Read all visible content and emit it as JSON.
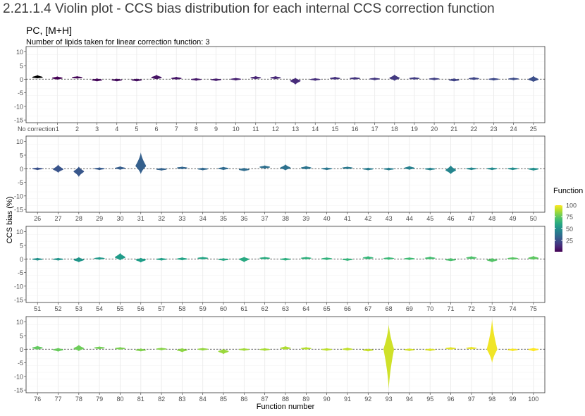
{
  "section_heading": "2.21.1.4 Violin plot - CCS bias distribution for each internal CCS correction function",
  "chart_data": {
    "type": "violin",
    "title": "PC, [M+H]",
    "subtitle": "Number of lipids taken for linear correction function: 3",
    "xlabel": "Function number",
    "ylabel": "CCS bias (%)",
    "ylim": [
      -16,
      12
    ],
    "yticks": [
      10,
      5,
      0,
      -5,
      -10,
      -15
    ],
    "reference_line_y": 0,
    "grid": true,
    "legend": {
      "title": "Function number",
      "position": "right",
      "ticks": [
        100,
        75,
        50,
        25
      ],
      "range": [
        1,
        100
      ],
      "colormap": "viridis"
    },
    "panels": [
      {
        "labels": [
          "No correction",
          "1",
          "2",
          "3",
          "4",
          "5",
          "6",
          "7",
          "8",
          "9",
          "10",
          "11",
          "12",
          "13",
          "14",
          "15",
          "16",
          "17",
          "18",
          "19",
          "20",
          "21",
          "22",
          "23",
          "24",
          "25"
        ],
        "median": [
          0.7,
          0.4,
          0.6,
          -0.3,
          -0.3,
          -0.3,
          0.6,
          0.3,
          -0.1,
          -0.2,
          0,
          0.5,
          0.5,
          -0.6,
          -0.1,
          0.3,
          0.3,
          0.1,
          0.4,
          0.3,
          0.1,
          -0.3,
          0.2,
          0,
          0.1,
          -0.1
        ],
        "min": [
          0.3,
          -0.2,
          0.2,
          -0.8,
          -0.8,
          -0.8,
          -0.1,
          -0.2,
          -0.6,
          -0.7,
          -0.5,
          0,
          0,
          -2,
          -0.6,
          -0.2,
          -0.2,
          -0.4,
          -0.6,
          -0.2,
          -0.4,
          -0.8,
          -0.3,
          -0.5,
          -0.4,
          -1
        ],
        "max": [
          1.5,
          1,
          1.1,
          0.3,
          0.2,
          0.2,
          1.6,
          0.9,
          0.4,
          0.3,
          0.5,
          1.1,
          1.1,
          0.5,
          0.4,
          0.9,
          0.8,
          0.6,
          1.7,
          0.8,
          0.6,
          0.3,
          0.8,
          0.5,
          0.6,
          1.2
        ]
      },
      {
        "labels": [
          "26",
          "27",
          "28",
          "29",
          "30",
          "31",
          "32",
          "33",
          "34",
          "35",
          "36",
          "37",
          "38",
          "39",
          "40",
          "41",
          "42",
          "43",
          "44",
          "45",
          "46",
          "47",
          "48",
          "49",
          "50"
        ],
        "median": [
          0,
          -0.2,
          -1,
          0,
          0.2,
          1,
          -0.2,
          0.3,
          -0.1,
          0.1,
          -0.3,
          0.6,
          0.3,
          0.3,
          0,
          0.3,
          -0.1,
          -0.1,
          0.2,
          -0.1,
          -0.5,
          0,
          0,
          0,
          -0.1
        ],
        "min": [
          -0.5,
          -1.5,
          -3,
          -0.5,
          -0.4,
          -2,
          -0.7,
          -0.2,
          -0.6,
          -0.5,
          -0.9,
          0,
          -0.6,
          -0.3,
          -0.5,
          -0.2,
          -0.6,
          -0.6,
          -0.4,
          -0.6,
          -2,
          -0.5,
          -0.5,
          -0.5,
          -0.7
        ],
        "max": [
          0.5,
          1.5,
          0.8,
          0.5,
          0.9,
          6,
          0.3,
          0.8,
          0.4,
          0.7,
          0.3,
          1.2,
          1.6,
          1,
          0.5,
          0.8,
          0.4,
          0.4,
          1,
          0.4,
          1.2,
          0.5,
          0.5,
          0.5,
          0.4
        ]
      },
      {
        "labels": [
          "51",
          "52",
          "53",
          "54",
          "55",
          "56",
          "57",
          "58",
          "59",
          "60",
          "61",
          "62",
          "63",
          "64",
          "65",
          "66",
          "67",
          "68",
          "69",
          "70",
          "71",
          "72",
          "73",
          "74",
          "75"
        ],
        "median": [
          -0.1,
          -0.1,
          -0.3,
          0.2,
          0.6,
          -0.3,
          -0.1,
          0,
          0.3,
          -0.2,
          -0.1,
          0.3,
          -0.1,
          0.3,
          0.1,
          -0.2,
          0.4,
          0.2,
          0.1,
          0.3,
          -0.3,
          0.4,
          -0.4,
          0.2,
          0.3
        ],
        "min": [
          -0.6,
          -0.6,
          -1.2,
          -0.3,
          -0.5,
          -1.3,
          -0.6,
          -0.5,
          -0.2,
          -0.7,
          -1.2,
          -0.2,
          -0.6,
          -0.2,
          -0.4,
          -0.7,
          -0.1,
          -0.3,
          -0.4,
          -0.2,
          -0.8,
          -0.1,
          -1.2,
          -0.3,
          -0.3
        ],
        "max": [
          0.4,
          0.4,
          0.7,
          0.7,
          2.2,
          0.4,
          0.4,
          0.6,
          0.8,
          0.3,
          0.8,
          0.8,
          0.4,
          0.8,
          0.6,
          0.3,
          1,
          0.7,
          0.6,
          0.9,
          0.3,
          1,
          0.3,
          0.7,
          1.1
        ]
      },
      {
        "labels": [
          "76",
          "77",
          "78",
          "79",
          "80",
          "81",
          "82",
          "83",
          "84",
          "85",
          "86",
          "87",
          "88",
          "89",
          "90",
          "91",
          "92",
          "93",
          "94",
          "95",
          "96",
          "97",
          "98",
          "99",
          "100"
        ],
        "median": [
          0.5,
          -0.2,
          0.3,
          0.5,
          0.3,
          -0.3,
          0.1,
          -0.3,
          0,
          -0.8,
          -0.1,
          -0.1,
          0.4,
          0.3,
          -0.1,
          0,
          -0.3,
          0,
          -0.2,
          -0.2,
          0.3,
          0.4,
          0,
          -0.2,
          -0.1
        ],
        "min": [
          -0.2,
          -0.9,
          -0.7,
          0,
          -0.2,
          -0.8,
          -0.4,
          -1.1,
          -0.5,
          -1.8,
          -0.6,
          -0.6,
          -0.2,
          -0.2,
          -0.6,
          -0.5,
          -0.8,
          -14.5,
          -0.7,
          -0.7,
          -0.2,
          -0.1,
          -5,
          -0.7,
          -0.8
        ],
        "max": [
          1.2,
          0.5,
          1.6,
          1,
          0.8,
          0.3,
          0.6,
          0.4,
          0.5,
          0.1,
          0.4,
          0.4,
          1.1,
          0.8,
          0.4,
          0.6,
          0.2,
          9,
          0.3,
          0.3,
          0.8,
          0.9,
          11,
          0.3,
          0.5
        ]
      }
    ]
  }
}
